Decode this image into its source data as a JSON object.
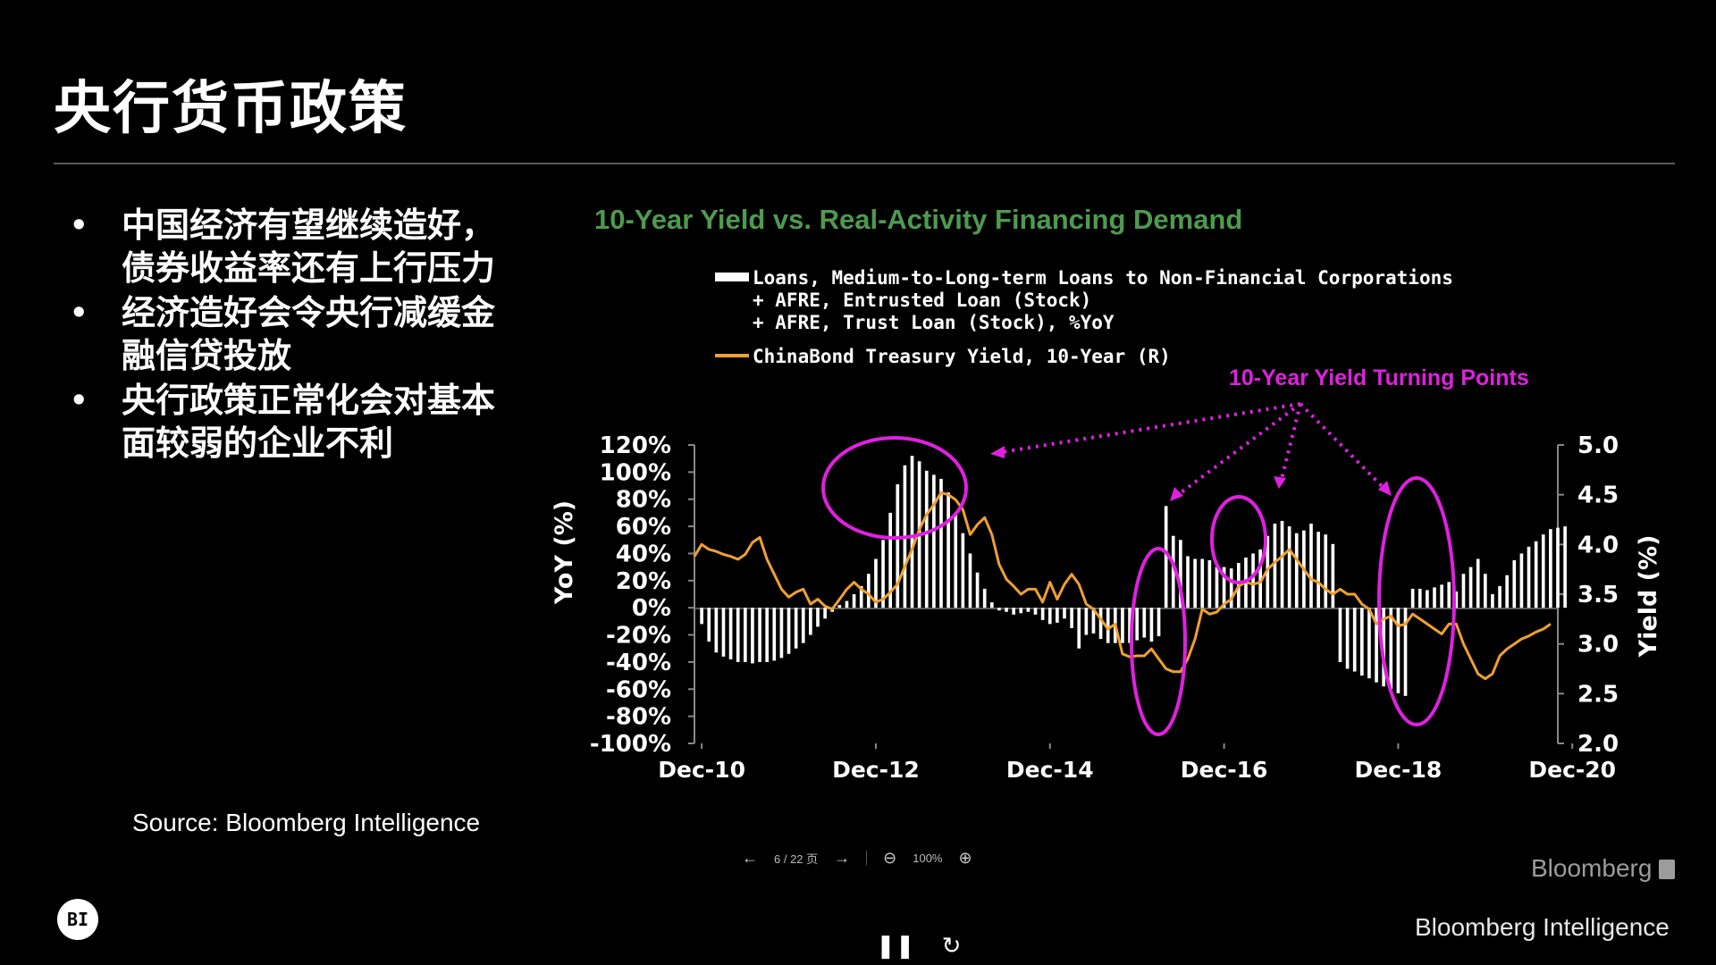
{
  "slide": {
    "title": "央行货币政策",
    "bullets": [
      "中国经济有望继续造好，债券收益率还有上行压力",
      "经济造好会令央行减缓金融信贷投放",
      "央行政策正常化会对基本面较弱的企业不利"
    ],
    "source": "Source: Bloomberg Intelligence",
    "badge": "BI"
  },
  "viewer": {
    "prev_icon": "arrow-left-icon",
    "page": "6 / 22 页",
    "next_icon": "arrow-right-icon",
    "zoom": "100%",
    "zoom_out_icon": "zoom-out-icon",
    "zoom_in_icon": "zoom-in-icon",
    "pause_icon": "pause-icon",
    "replay_icon": "replay-icon"
  },
  "logos": {
    "bloomberg": "Bloomberg",
    "bloomberg_intelligence": "Bloomberg Intelligence"
  },
  "chart_data": {
    "type": "bar+line",
    "title": "10-Year Yield vs. Real-Activity Financing Demand",
    "legend": {
      "bar_lines": [
        "Loans, Medium-to-Long-term Loans to Non-Financial Corporations",
        "+ AFRE, Entrusted Loan (Stock)",
        "+ AFRE, Trust Loan (Stock), %YoY"
      ],
      "line": "ChinaBond Treasury Yield, 10-Year (R)"
    },
    "annotation": "10-Year Yield Turning Points",
    "ylabel_left": "YoY (%)",
    "ylabel_right": "Yield (%)",
    "ylim_left": [
      -100,
      120
    ],
    "ylim_right": [
      2.0,
      5.0
    ],
    "y_ticks_left": [
      "120%",
      "100%",
      "80%",
      "60%",
      "40%",
      "20%",
      "0%",
      "-20%",
      "-40%",
      "-60%",
      "-80%",
      "-100%"
    ],
    "y_ticks_right": [
      "5.0",
      "4.5",
      "4.0",
      "3.5",
      "3.0",
      "2.5",
      "2.0"
    ],
    "x_ticks": [
      "Dec-10",
      "Dec-12",
      "Dec-14",
      "Dec-16",
      "Dec-18",
      "Dec-20"
    ],
    "x_range_months": [
      -1,
      118
    ],
    "colors": {
      "bars": "#ffffff",
      "line": "#f0a030",
      "title": "#4e9a4f",
      "annotation": "#e020e0"
    },
    "bars_yoy": [
      -12,
      -25,
      -33,
      -36,
      -38,
      -40,
      -40,
      -41,
      -40,
      -40,
      -39,
      -37,
      -34,
      -30,
      -26,
      -20,
      -14,
      -8,
      -3,
      2,
      5,
      10,
      16,
      25,
      36,
      50,
      70,
      91,
      105,
      112,
      108,
      101,
      98,
      95,
      85,
      70,
      55,
      40,
      26,
      14,
      4,
      -2,
      -3,
      -5,
      -4,
      -3,
      -5,
      -9,
      -12,
      -11,
      -8,
      -15,
      -30,
      -20,
      -19,
      -23,
      -26,
      -26,
      -26,
      -26,
      -24,
      -22,
      -25,
      -21,
      75,
      53,
      50,
      38,
      36,
      36,
      35,
      30,
      30,
      29,
      33,
      37,
      40,
      43,
      53,
      62,
      64,
      60,
      55,
      57,
      62,
      56,
      54,
      47,
      -40,
      -45,
      -47,
      -50,
      -52,
      -55,
      -58,
      -60,
      -63,
      -65,
      14,
      14,
      13,
      15,
      17,
      19,
      12,
      25,
      30,
      36,
      25,
      10,
      16,
      24,
      35,
      40,
      45,
      49,
      54,
      58,
      59,
      60
    ],
    "yield_10y": {
      "months": [
        -1,
        0,
        1,
        2,
        3,
        4,
        5,
        6,
        7,
        8,
        9,
        10,
        11,
        12,
        13,
        14,
        15,
        16,
        17,
        18,
        19,
        20,
        21,
        22,
        23,
        24,
        25,
        26,
        27,
        28,
        29,
        30,
        31,
        32,
        33,
        34,
        35,
        36,
        37,
        38,
        39,
        40,
        41,
        42,
        43,
        44,
        45,
        46,
        47,
        48,
        49,
        50,
        51,
        52,
        53,
        54,
        55,
        56,
        57,
        58,
        59,
        60,
        61,
        62,
        63,
        64,
        65,
        66,
        67,
        68,
        69,
        70,
        71,
        72,
        73,
        74,
        75,
        76,
        77,
        78,
        79,
        80,
        81,
        82,
        83,
        84,
        85,
        86,
        87,
        88,
        89,
        90,
        91,
        92,
        93,
        94,
        95,
        96,
        97,
        98,
        99,
        100,
        101,
        102,
        103,
        104,
        105,
        106,
        107,
        108,
        109,
        110,
        111,
        112,
        113,
        114,
        115,
        116,
        117
      ],
      "values": [
        3.88,
        4.0,
        3.95,
        3.93,
        3.9,
        3.88,
        3.85,
        3.9,
        4.02,
        4.07,
        3.85,
        3.7,
        3.55,
        3.47,
        3.52,
        3.55,
        3.4,
        3.45,
        3.38,
        3.35,
        3.45,
        3.55,
        3.62,
        3.55,
        3.5,
        3.42,
        3.45,
        3.52,
        3.6,
        3.78,
        3.95,
        4.15,
        4.3,
        4.4,
        4.52,
        4.5,
        4.45,
        4.35,
        4.1,
        4.2,
        4.27,
        4.1,
        3.8,
        3.65,
        3.58,
        3.5,
        3.55,
        3.55,
        3.42,
        3.62,
        3.45,
        3.6,
        3.7,
        3.6,
        3.4,
        3.35,
        3.25,
        3.15,
        3.2,
        2.9,
        2.87,
        2.88,
        2.88,
        2.95,
        2.85,
        2.75,
        2.72,
        2.72,
        2.85,
        3.05,
        3.35,
        3.3,
        3.32,
        3.4,
        3.45,
        3.58,
        3.62,
        3.6,
        3.62,
        3.75,
        3.82,
        3.88,
        3.95,
        3.85,
        3.75,
        3.65,
        3.62,
        3.55,
        3.5,
        3.55,
        3.5,
        3.5,
        3.4,
        3.35,
        3.2,
        3.25,
        3.28,
        3.18,
        3.2,
        3.3,
        3.25,
        3.2,
        3.15,
        3.1,
        3.2,
        3.2,
        3.0,
        2.85,
        2.7,
        2.65,
        2.7,
        2.88,
        2.95,
        3.0,
        3.05,
        3.08,
        3.12,
        3.15,
        3.2
      ]
    }
  }
}
